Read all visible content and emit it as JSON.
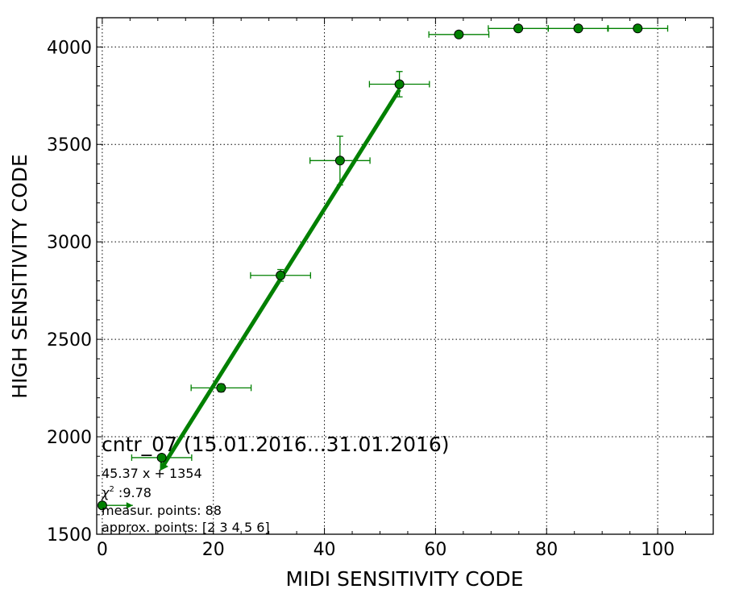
{
  "chart_data": {
    "type": "scatter",
    "xlabel": "MIDI SENSITIVITY CODE",
    "ylabel": "HIGH SENSITIVITY CODE",
    "xlim": [
      -1,
      110
    ],
    "ylim": [
      1500,
      4150
    ],
    "xticks": [
      0,
      20,
      40,
      60,
      80,
      100
    ],
    "yticks": [
      1500,
      2000,
      2500,
      3000,
      3500,
      4000
    ],
    "grid": true,
    "point_color": "#008000",
    "points": [
      {
        "x": 0.0,
        "y": 1648,
        "xerr_left": 0.0,
        "xerr_right": 5.5,
        "yerr": 0
      },
      {
        "x": 10.7,
        "y": 1893,
        "xerr_left": 5.4,
        "xerr_right": 5.4,
        "yerr": 0
      },
      {
        "x": 21.4,
        "y": 2251,
        "xerr_left": 5.4,
        "xerr_right": 5.4,
        "yerr": 20
      },
      {
        "x": 32.1,
        "y": 2828,
        "xerr_left": 5.4,
        "xerr_right": 5.4,
        "yerr": 30
      },
      {
        "x": 42.8,
        "y": 3417,
        "xerr_left": 5.4,
        "xerr_right": 5.4,
        "yerr": 125
      },
      {
        "x": 53.5,
        "y": 3809,
        "xerr_left": 5.4,
        "xerr_right": 5.4,
        "yerr": 65
      },
      {
        "x": 64.2,
        "y": 4064,
        "xerr_left": 5.4,
        "xerr_right": 5.4,
        "yerr": 0
      },
      {
        "x": 74.9,
        "y": 4095,
        "xerr_left": 5.4,
        "xerr_right": 5.4,
        "yerr": 0
      },
      {
        "x": 85.7,
        "y": 4095,
        "xerr_left": 5.4,
        "xerr_right": 5.4,
        "yerr": 0
      },
      {
        "x": 96.4,
        "y": 4095,
        "xerr_left": 5.4,
        "xerr_right": 5.4,
        "yerr": 0
      }
    ],
    "fit_line": {
      "slope": 45.37,
      "intercept": 1354,
      "x_from": 10.7,
      "x_to": 53.5,
      "color": "#008000"
    },
    "annotations": {
      "title": "cntr_07 (15.01.2016...31.01.2016)",
      "fit_equation": "45.37 x + 1354",
      "chi2_symbol": "χ",
      "chi2_exponent": "2",
      "chi2_value": " :9.78",
      "measured_points": "measur. points: 88",
      "approx_points": "approx. points: [2 3 4 5 6]"
    }
  }
}
